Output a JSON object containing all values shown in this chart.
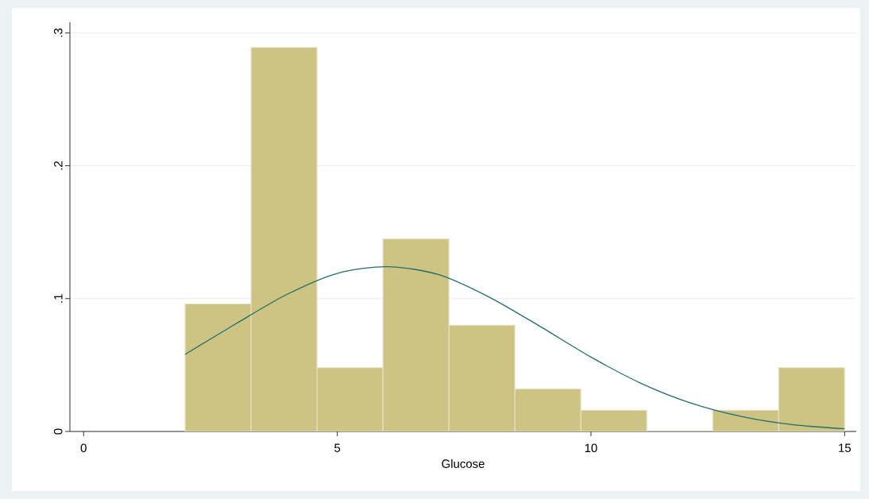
{
  "chart_data": {
    "type": "histogram",
    "xlabel": "Glucose",
    "series": [
      {
        "bins": [
          2,
          3.3,
          4.6,
          5.9,
          7.2,
          8.5,
          9.8,
          11.1,
          12.4,
          13.7,
          15
        ],
        "values": [
          0.096,
          0.289,
          0.048,
          0.145,
          0.08,
          0.032,
          0.016,
          0,
          0.016,
          0.048
        ],
        "color": "#cdc382"
      },
      {
        "type": "line",
        "x": [
          2,
          3,
          4,
          5,
          6,
          7,
          8,
          9,
          10,
          11,
          12,
          13,
          14,
          15
        ],
        "values": [
          0.058,
          0.081,
          0.103,
          0.119,
          0.124,
          0.118,
          0.101,
          0.079,
          0.056,
          0.036,
          0.021,
          0.011,
          0.005,
          0.002
        ],
        "color": "#1f6f6b"
      }
    ],
    "xlim": [
      -0.27,
      15.23
    ],
    "ylim": [
      0,
      0.308
    ],
    "xticks": [
      0,
      5,
      10,
      15
    ],
    "yticks": [
      0,
      {
        "value": 0.1,
        "label": ".1"
      },
      {
        "value": 0.2,
        "label": ".2"
      },
      {
        "value": 0.3,
        "label": ".3"
      }
    ],
    "grid": "y"
  }
}
